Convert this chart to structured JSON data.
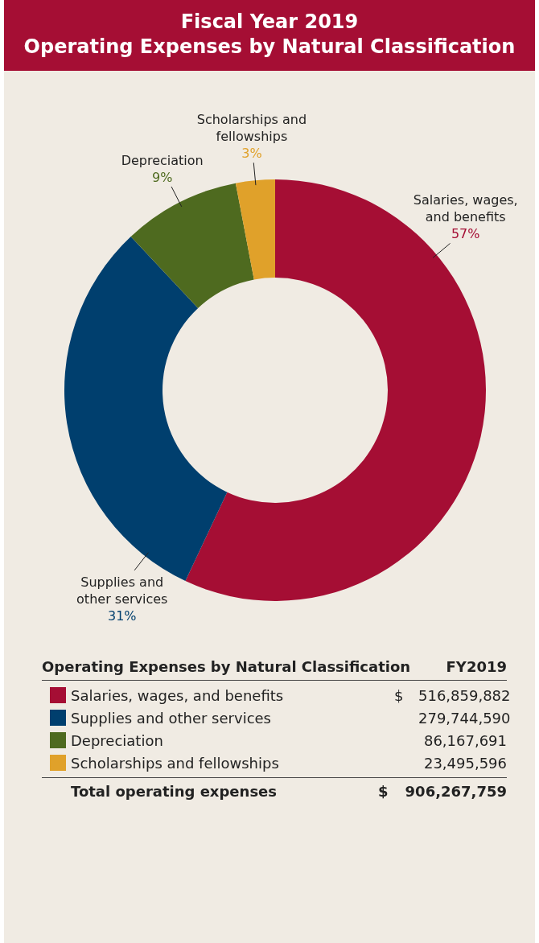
{
  "chart_data": {
    "type": "donut",
    "title": "Fiscal Year 2019",
    "subtitle": "Operating Expenses by Natural Classification",
    "categories": [
      "Salaries, wages, and benefits",
      "Supplies and other services",
      "Depreciation",
      "Scholarships and fellowships"
    ],
    "values": [
      57,
      31,
      9,
      3
    ],
    "value_labels": [
      "57%",
      "31%",
      "9%",
      "3%"
    ],
    "colors": [
      "#a50e34",
      "#003f6e",
      "#4e6a1f",
      "#e0a12a"
    ],
    "annotations": [
      "Operating Expenses by Natural Classification",
      "FY2019",
      "$",
      "516,859,882",
      "279,744,590",
      "86,167,691",
      "23,495,596",
      "Total operating expenses",
      "$",
      "906,267,759"
    ],
    "legend": "bottom"
  }
}
